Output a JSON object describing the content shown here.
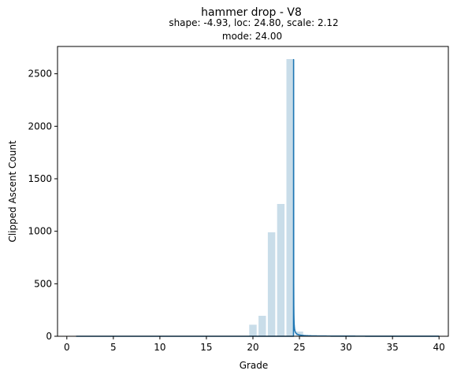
{
  "chart_data": {
    "type": "bar",
    "title": "hammer drop - V8",
    "subtitle_lines": [
      "shape: -4.93, loc: 24.80, scale: 2.12",
      "mode: 24.00"
    ],
    "xlabel": "Grade",
    "ylabel": "Clipped Ascent Count",
    "xlim": [
      -1,
      41
    ],
    "ylim": [
      0,
      2760
    ],
    "xticks": [
      0,
      5,
      10,
      15,
      20,
      25,
      30,
      35,
      40
    ],
    "yticks": [
      0,
      500,
      1000,
      1500,
      2000,
      2500
    ],
    "grid": false,
    "bars": {
      "x": [
        20,
        21,
        22,
        23,
        24,
        25
      ],
      "values": [
        110,
        195,
        990,
        1260,
        2640,
        45
      ],
      "color": "#c9dde9"
    },
    "fit_curve": {
      "distribution": "genextreme",
      "shape": -4.93,
      "loc": 24.8,
      "scale": 2.12,
      "mode": 24.0,
      "peak": 2635,
      "x_range": [
        1,
        40
      ],
      "color": "#1f77b4"
    }
  }
}
